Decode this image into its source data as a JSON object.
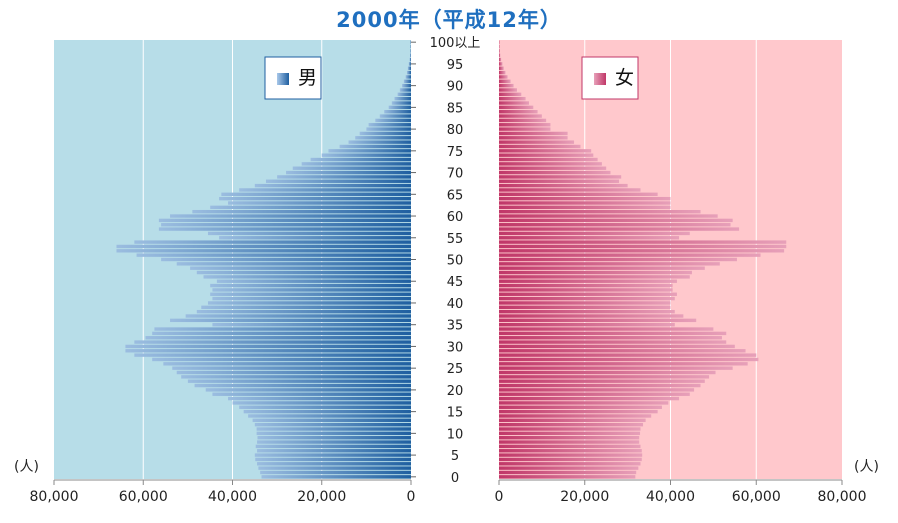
{
  "chart_data": {
    "type": "bar",
    "orientation": "horizontal-butterfly",
    "title": "2000年（平成12年）",
    "unit_label": "(人)",
    "age_ticks": [
      "0",
      "5",
      "10",
      "15",
      "20",
      "25",
      "30",
      "35",
      "40",
      "45",
      "50",
      "55",
      "60",
      "65",
      "70",
      "75",
      "80",
      "85",
      "90",
      "95",
      "100以上"
    ],
    "male_axis_ticks": [
      "80,000",
      "60,000",
      "40,000",
      "20,000",
      "0"
    ],
    "female_axis_ticks": [
      "0",
      "20,000",
      "40,000",
      "60,000",
      "80,000"
    ],
    "xlim": [
      0,
      80000
    ],
    "ages": [
      0,
      1,
      2,
      3,
      4,
      5,
      6,
      7,
      8,
      9,
      10,
      11,
      12,
      13,
      14,
      15,
      16,
      17,
      18,
      19,
      20,
      21,
      22,
      23,
      24,
      25,
      26,
      27,
      28,
      29,
      30,
      31,
      32,
      33,
      34,
      35,
      36,
      37,
      38,
      39,
      40,
      41,
      42,
      43,
      44,
      45,
      46,
      47,
      48,
      49,
      50,
      51,
      52,
      53,
      54,
      55,
      56,
      57,
      58,
      59,
      60,
      61,
      62,
      63,
      64,
      65,
      66,
      67,
      68,
      69,
      70,
      71,
      72,
      73,
      74,
      75,
      76,
      77,
      78,
      79,
      80,
      81,
      82,
      83,
      84,
      85,
      86,
      87,
      88,
      89,
      90,
      91,
      92,
      93,
      94,
      95,
      96,
      97,
      98,
      99,
      100
    ],
    "series": [
      {
        "name": "男",
        "color": "#1f5fa0",
        "background": "#b7dde8",
        "values": [
          33500,
          33800,
          34200,
          34500,
          34900,
          35000,
          34500,
          34800,
          34500,
          34400,
          34600,
          34600,
          35000,
          35500,
          36500,
          37500,
          38500,
          40000,
          41000,
          44500,
          46000,
          48500,
          50000,
          51500,
          52500,
          53500,
          55500,
          58000,
          62000,
          64000,
          64000,
          62000,
          59500,
          58000,
          57500,
          44500,
          54000,
          50500,
          48000,
          47000,
          45500,
          44500,
          45000,
          44500,
          45000,
          43500,
          46500,
          48000,
          49500,
          52500,
          56000,
          61500,
          66000,
          66000,
          62000,
          43000,
          45500,
          56500,
          56000,
          56500,
          54000,
          49000,
          45000,
          41000,
          43000,
          42500,
          38500,
          35000,
          32500,
          30000,
          28000,
          26500,
          24500,
          22500,
          20000,
          18500,
          16000,
          14000,
          12500,
          11500,
          10000,
          9500,
          8000,
          7000,
          6000,
          5000,
          4300,
          3700,
          3000,
          2500,
          2000,
          1600,
          1200,
          900,
          700,
          500,
          300,
          200,
          150,
          100,
          100
        ]
      },
      {
        "name": "女",
        "color": "#c03768",
        "background": "#ffc8cc",
        "values": [
          31800,
          32000,
          32500,
          33000,
          33300,
          33400,
          33300,
          33000,
          32700,
          32700,
          32900,
          33000,
          33600,
          34200,
          35500,
          37000,
          38000,
          39500,
          42000,
          44500,
          45500,
          47000,
          48000,
          49000,
          50500,
          54500,
          58000,
          60500,
          60000,
          57500,
          55000,
          53000,
          52000,
          53000,
          50000,
          41000,
          46000,
          43000,
          41000,
          40000,
          40000,
          41000,
          41500,
          40500,
          40500,
          41500,
          44500,
          45000,
          48000,
          51500,
          55500,
          61000,
          66500,
          67000,
          67000,
          42000,
          44500,
          56000,
          54000,
          54500,
          51000,
          47000,
          40000,
          40000,
          40000,
          37000,
          33000,
          30000,
          28000,
          28500,
          26000,
          25000,
          24000,
          23000,
          22000,
          21500,
          19000,
          17500,
          16000,
          16000,
          12000,
          12000,
          11000,
          10000,
          9000,
          8000,
          7000,
          6200,
          5200,
          4200,
          3400,
          2700,
          2000,
          1500,
          1100,
          800,
          500,
          300,
          200,
          150,
          100
        ]
      }
    ],
    "legend": [
      "男",
      "女"
    ],
    "grid": true
  }
}
